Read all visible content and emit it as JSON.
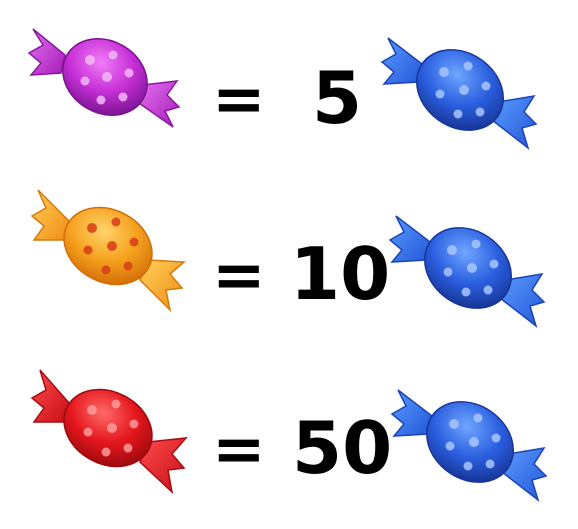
{
  "equations": [
    {
      "left_candy": "purple-candy-icon",
      "left_color": "#c62fd6",
      "equals": "=",
      "value": "5",
      "right_candy": "blue-candy-icon",
      "right_color": "#2b5fe0"
    },
    {
      "left_candy": "orange-candy-icon",
      "left_color": "#f5a11e",
      "equals": "=",
      "value": "10",
      "right_candy": "blue-candy-icon",
      "right_color": "#2b5fe0"
    },
    {
      "left_candy": "red-candy-icon",
      "left_color": "#e4161c",
      "equals": "=",
      "value": "50",
      "right_candy": "blue-candy-icon",
      "right_color": "#2b5fe0"
    }
  ]
}
